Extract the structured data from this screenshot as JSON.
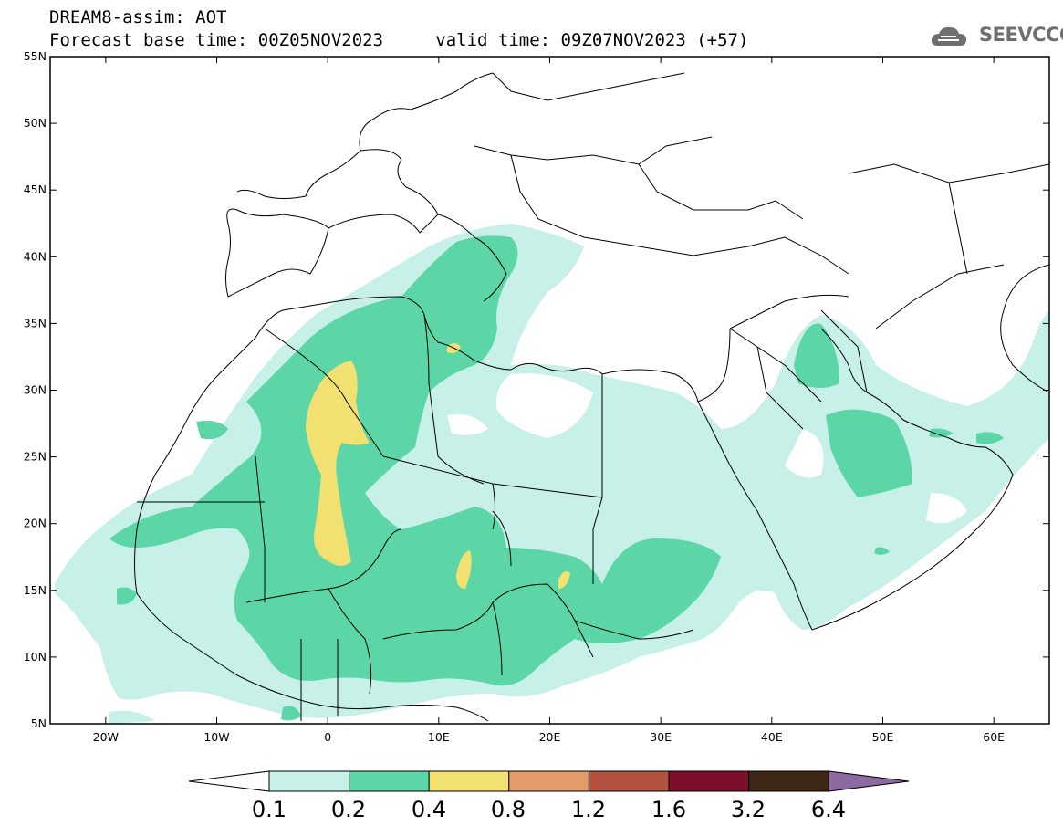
{
  "header": {
    "line1": "DREAM8-assim: AOT",
    "line2_base": "Forecast base time: 00Z05NOV2023",
    "line2_valid": "valid time: 09Z07NOV2023 (+57)",
    "logo_text": "SEEVCCC"
  },
  "map": {
    "lon_range": [
      -25,
      65
    ],
    "lat_range": [
      5,
      55
    ],
    "lat_ticks": [
      "55N",
      "50N",
      "45N",
      "40N",
      "35N",
      "30N",
      "25N",
      "20N",
      "15N",
      "10N",
      "5N"
    ],
    "lon_ticks": [
      "20W",
      "10W",
      "0",
      "10E",
      "20E",
      "30E",
      "40E",
      "50E",
      "60E"
    ]
  },
  "colorbar": {
    "levels": [
      "0.1",
      "0.2",
      "0.4",
      "0.8",
      "1.2",
      "1.6",
      "3.2",
      "6.4"
    ],
    "colors": [
      "#c6f0e8",
      "#5cd6a6",
      "#f2e071",
      "#e59a6a",
      "#b3533f",
      "#7d0f2c",
      "#3e2716",
      "#8d6aa2"
    ]
  }
}
